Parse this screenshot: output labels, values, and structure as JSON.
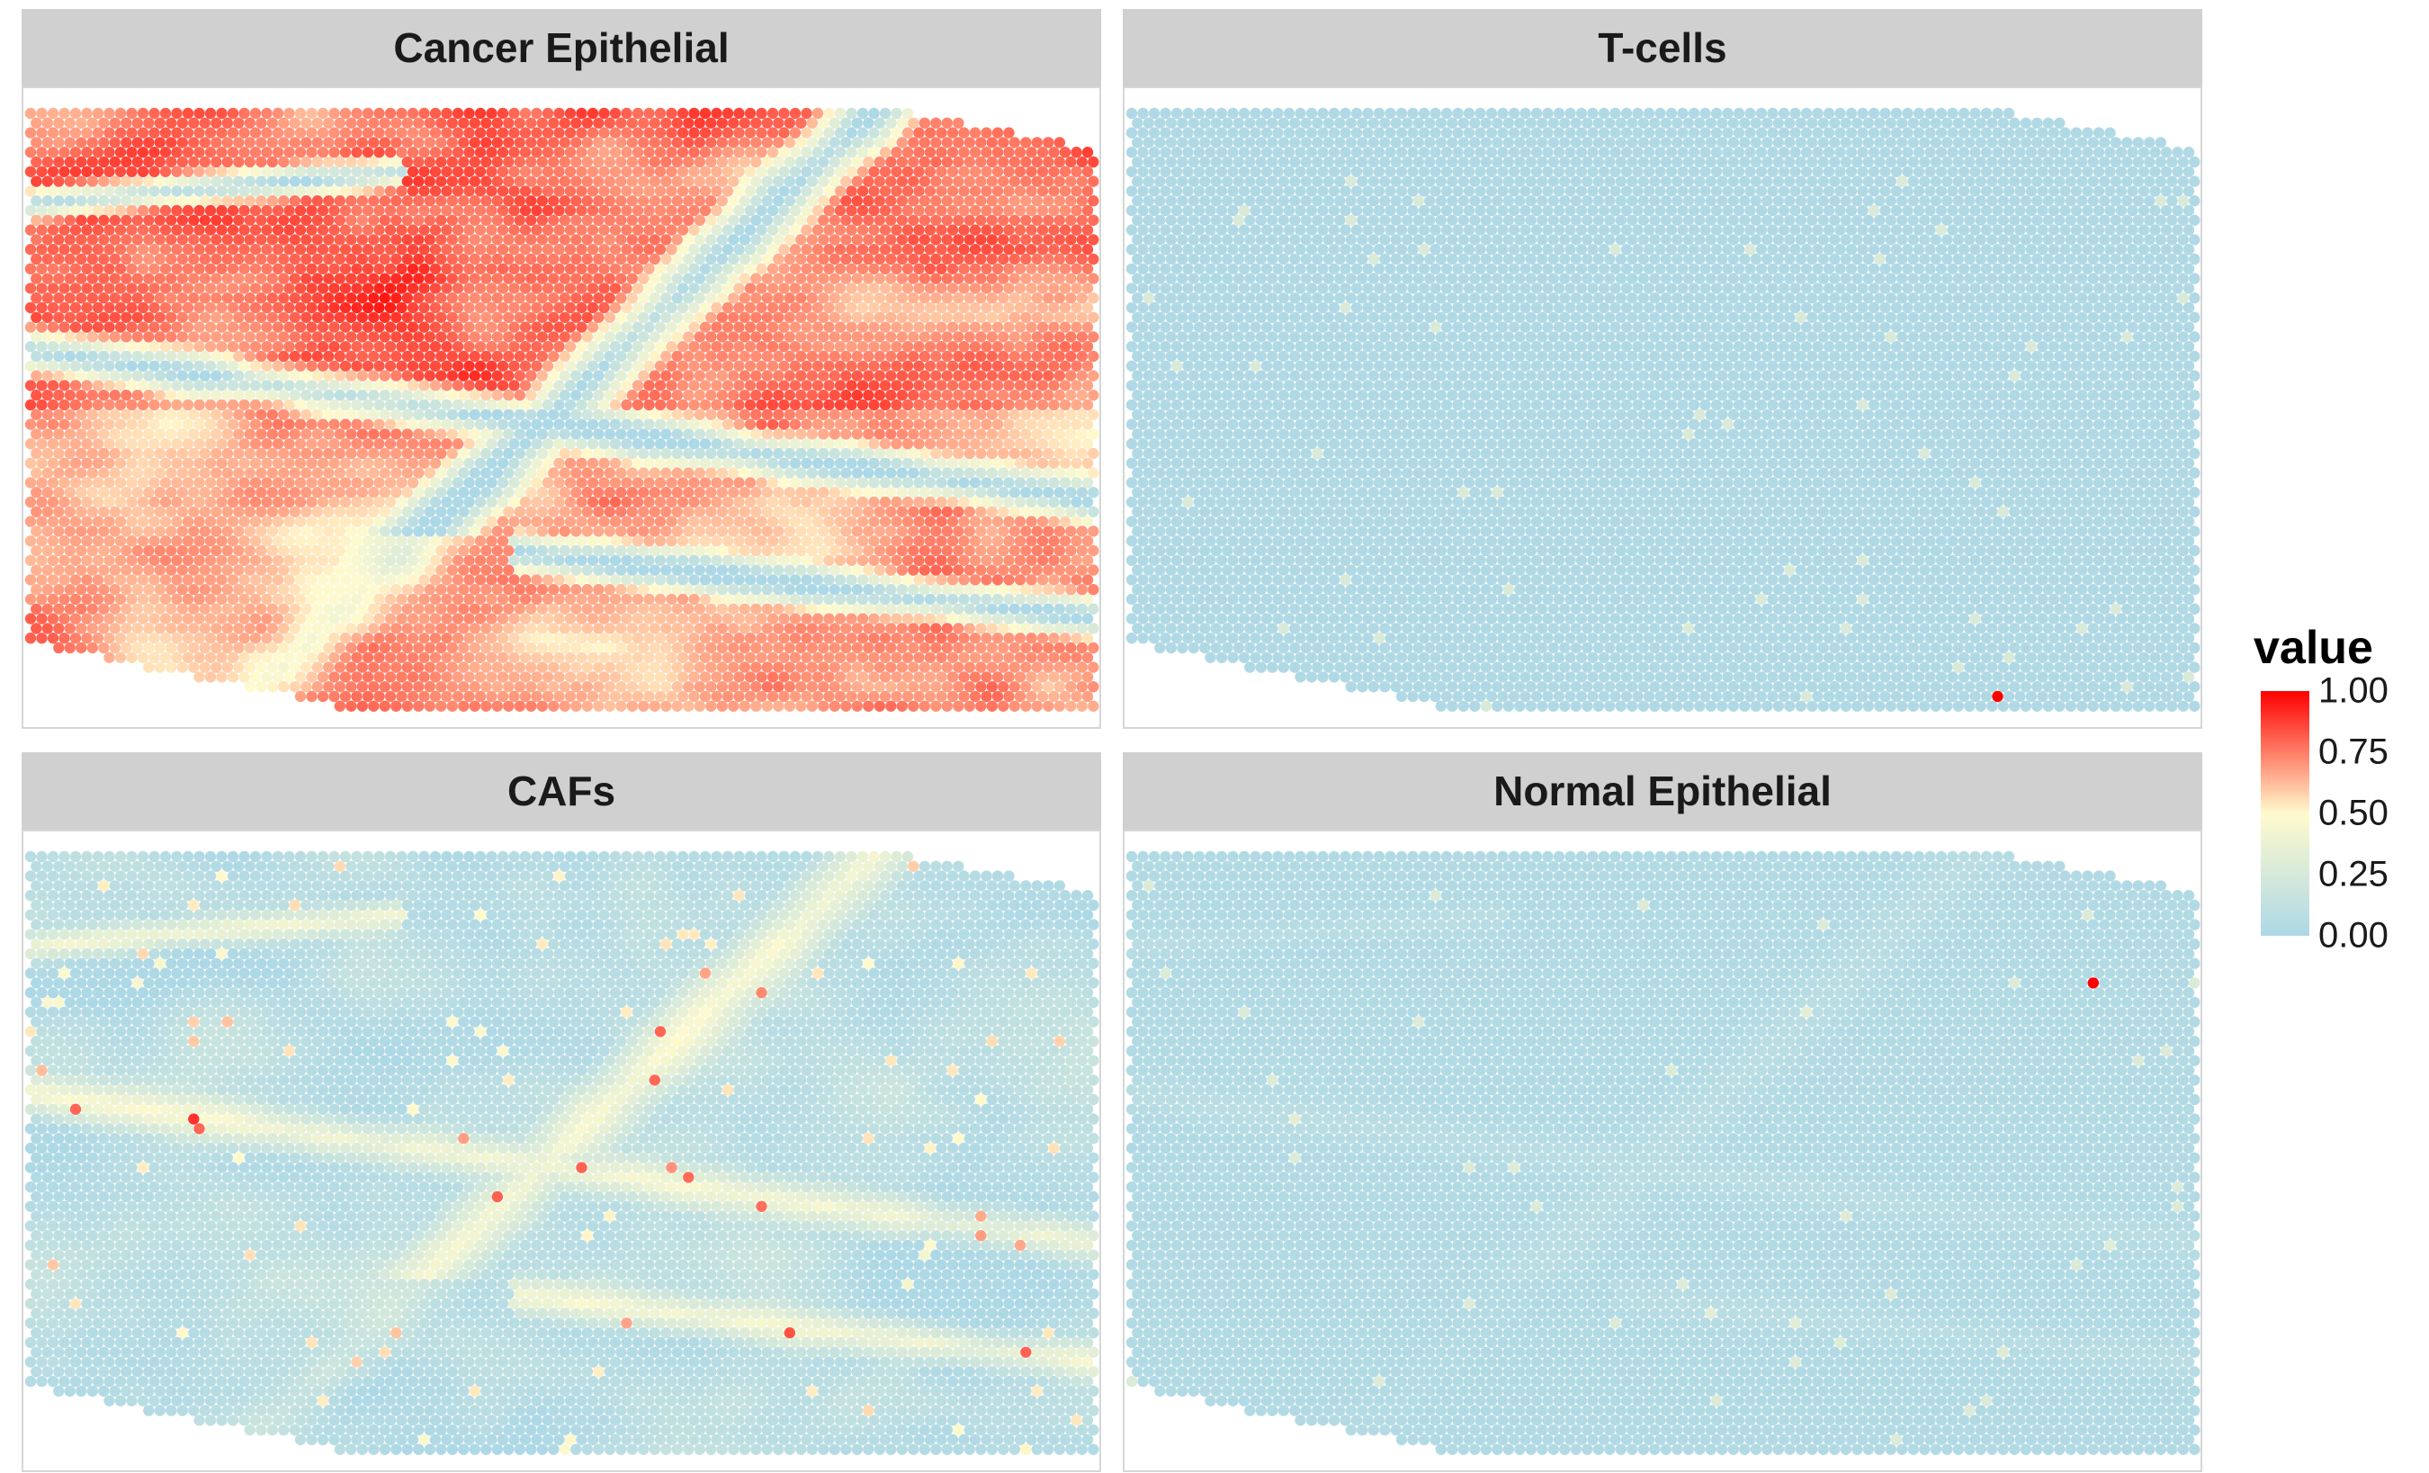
{
  "chart_data": {
    "type": "heatmap",
    "layout": "2x2 facet grid of spatial spot maps",
    "panels": [
      {
        "title": "Cancer Epithelial",
        "pattern": "high values (red) across most of the tissue with lower-value bands (blue/cream) running diagonally through the middle",
        "mean_value": 0.75
      },
      {
        "title": "T-cells",
        "pattern": "near zero everywhere (light blue) with sparse slightly elevated spots and one spot at 1.00 near the lower right",
        "mean_value": 0.01
      },
      {
        "title": "CAFs",
        "pattern": "mostly low (light blue) with scattered moderate values (cream/orange) along bands where Cancer Epithelial is low",
        "mean_value": 0.2
      },
      {
        "title": "Normal Epithelial",
        "pattern": "near zero everywhere (light blue) with one spot at 1.00 near the upper right",
        "mean_value": 0.01
      }
    ],
    "legend": {
      "title": "value",
      "ticks": [
        "1.00",
        "0.75",
        "0.50",
        "0.25",
        "0.00"
      ],
      "tick_values": [
        1.0,
        0.75,
        0.5,
        0.25,
        0.0
      ],
      "range": [
        0,
        1
      ],
      "placement": "right"
    },
    "color_scale": {
      "low": "#add8e6",
      "mid": "#fffacd",
      "high": "#ff0000"
    },
    "grid": false
  }
}
